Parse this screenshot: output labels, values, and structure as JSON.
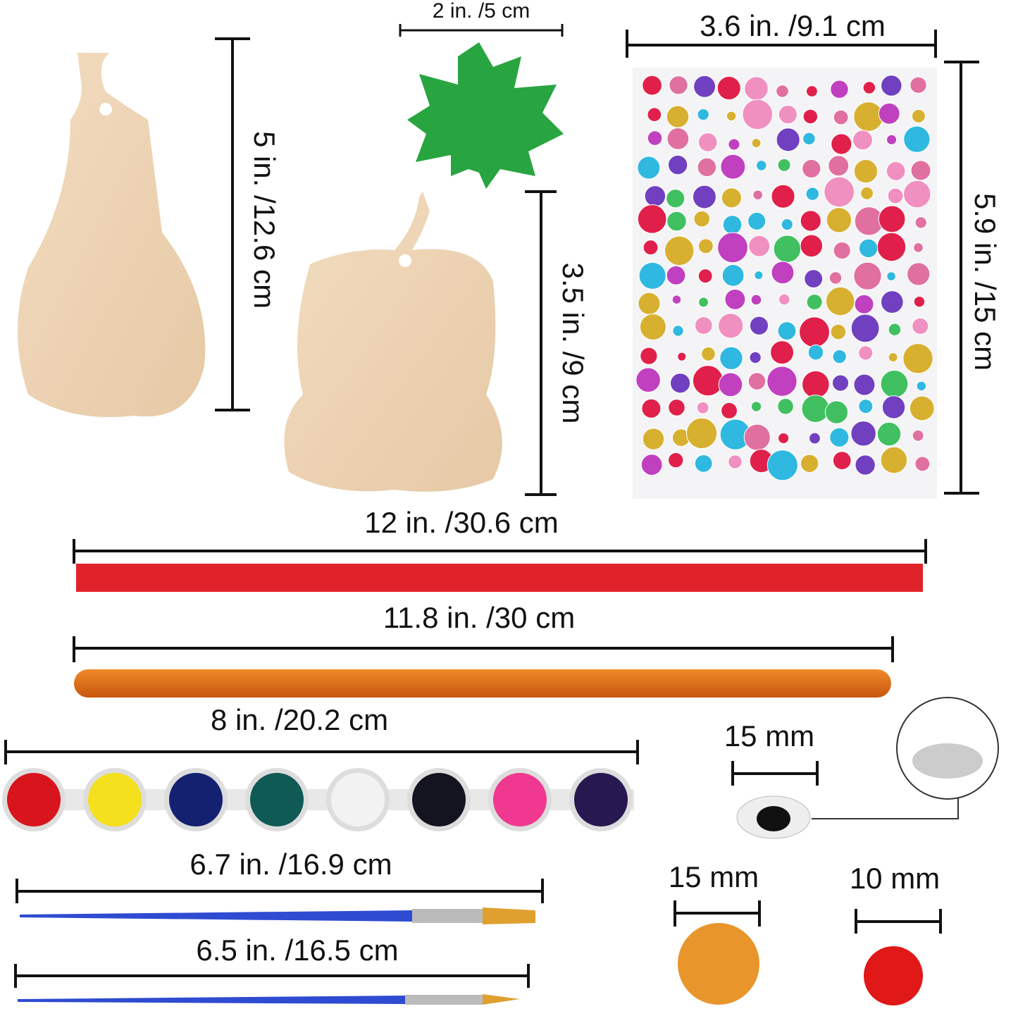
{
  "dimensions": {
    "gourd_height": "5 in. /12.6 cm",
    "leaf_width": "2 in. /5 cm",
    "sticker_width": "3.6 in. /9.1 cm",
    "pumpkin_height": "3.5 in. /9 cm",
    "sticker_height": "5.9 in. /15 cm",
    "ribbon_length": "12 in. /30.6 cm",
    "pipe_cleaner_length": "11.8 in. /30 cm",
    "paint_strip_length": "8 in. /20.2 cm",
    "eye_size": "15 mm",
    "brush_1_length": "6.7 in. /16.9 cm",
    "pom_large_size": "15 mm",
    "pom_small_size": "10 mm",
    "brush_2_length": "6.5 in. /16.5 cm"
  }
}
